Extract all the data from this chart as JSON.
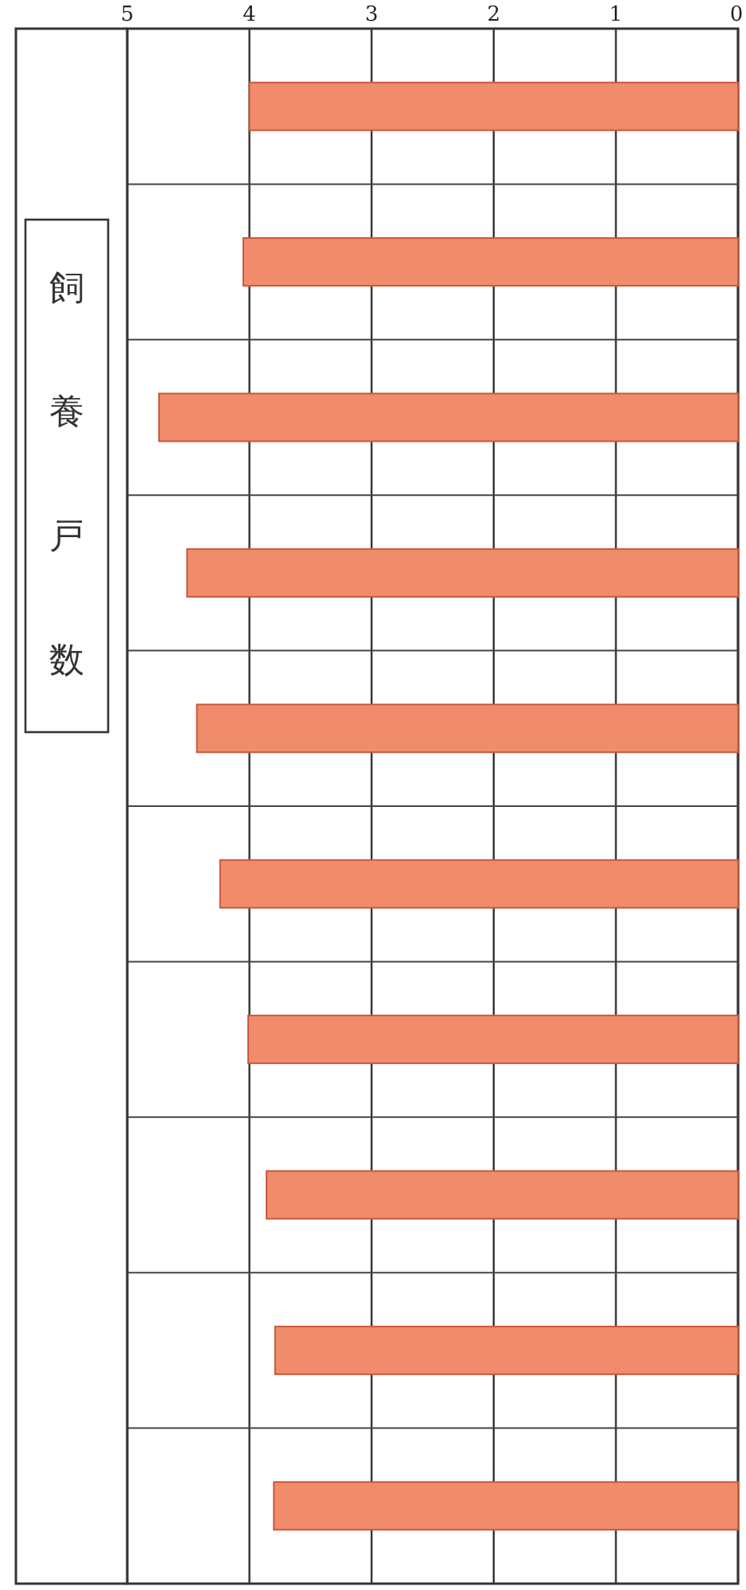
{
  "chart_data": {
    "type": "bar",
    "orientation": "horizontal",
    "ylabel": "飼養戸数",
    "categories": [
      null,
      null,
      null,
      null,
      null,
      null,
      null,
      null,
      null,
      null
    ],
    "values": [
      4.0,
      4.05,
      4.74,
      4.51,
      4.43,
      4.24,
      4.01,
      3.86,
      3.79,
      3.8
    ],
    "color": "#f08c6c",
    "xlim": [
      5,
      0
    ],
    "xticks": [
      5,
      4,
      3,
      2,
      1,
      0
    ],
    "grid": true
  }
}
